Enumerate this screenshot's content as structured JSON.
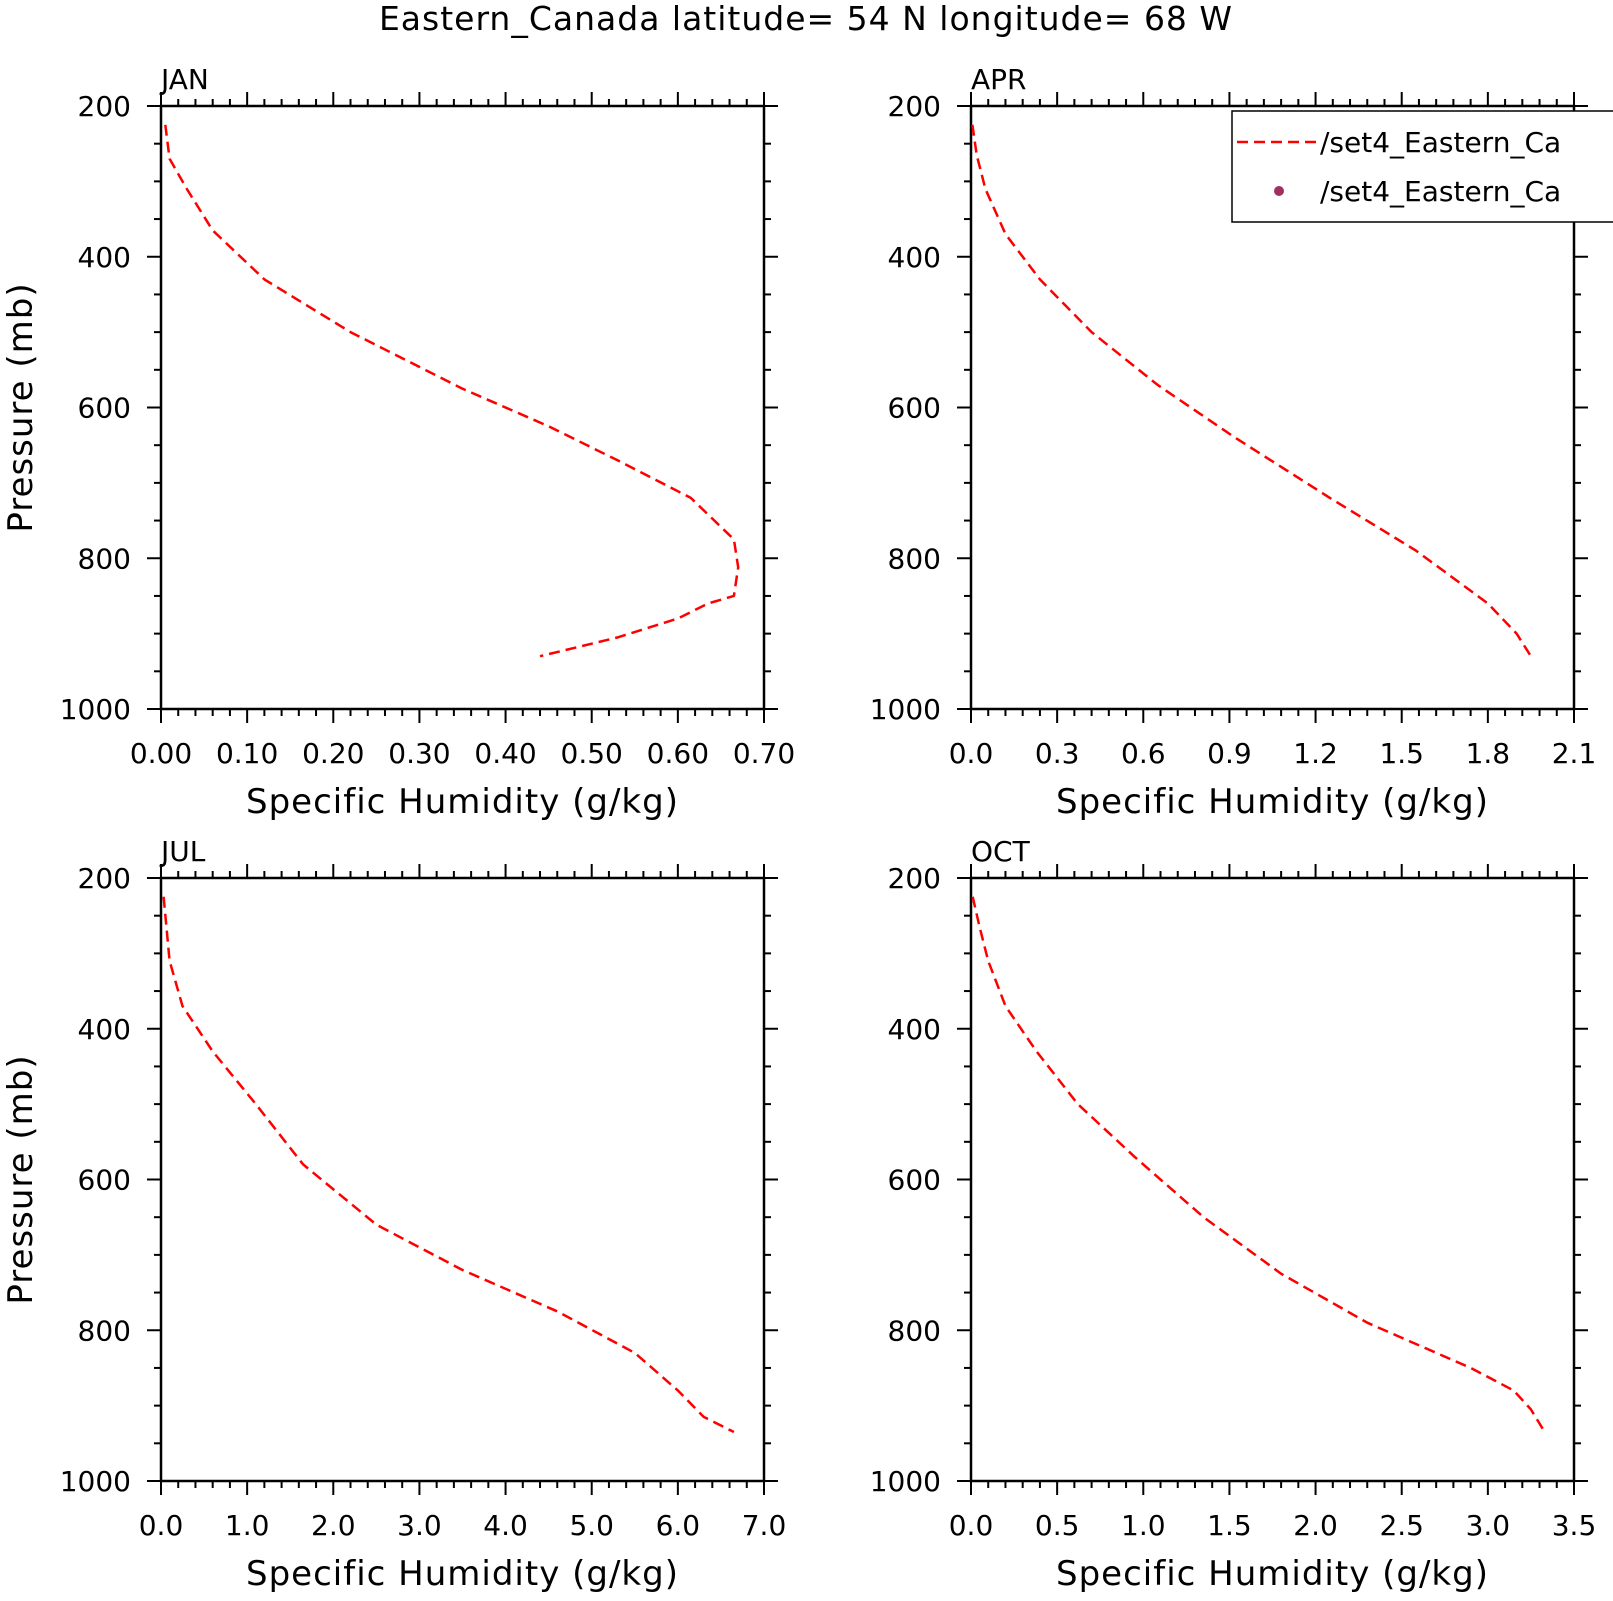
{
  "figure": {
    "title": "Eastern_Canada  latitude= 54 N longitude= 68 W"
  },
  "legend": {
    "entries": [
      {
        "label": "/set4_Eastern_Ca",
        "style": "dashed-line",
        "color": "#ff0000"
      },
      {
        "label": "/set4_Eastern_Ca",
        "style": "marker",
        "color": "#a03060"
      }
    ]
  },
  "chart_data": [
    {
      "type": "line",
      "title": "JAN",
      "xlabel": "Specific Humidity (g/kg)",
      "ylabel": "Pressure (mb)",
      "xlim": [
        0,
        0.7
      ],
      "ylim": [
        200,
        1000
      ],
      "y_inverted": true,
      "xticks": [
        "0.00",
        "0.10",
        "0.20",
        "0.30",
        "0.40",
        "0.50",
        "0.60",
        "0.70"
      ],
      "yticks": [
        "200",
        "400",
        "600",
        "800",
        "1000"
      ],
      "series": [
        {
          "color": "#ff0000",
          "dash": "dashed",
          "x": [
            0.005,
            0.01,
            0.03,
            0.06,
            0.12,
            0.22,
            0.35,
            0.45,
            0.53,
            0.615,
            0.665,
            0.67,
            0.665,
            0.635,
            0.6,
            0.53,
            0.44
          ],
          "y": [
            225,
            270,
            310,
            365,
            430,
            500,
            575,
            625,
            670,
            720,
            775,
            812,
            850,
            860,
            880,
            905,
            930
          ]
        }
      ]
    },
    {
      "type": "line",
      "title": "APR",
      "xlabel": "Specific Humidity (g/kg)",
      "ylabel": "Pressure (mb)",
      "xlim": [
        0,
        2.1
      ],
      "ylim": [
        200,
        1000
      ],
      "y_inverted": true,
      "xticks": [
        "0.0",
        "0.3",
        "0.6",
        "0.9",
        "1.2",
        "1.5",
        "1.8",
        "2.1"
      ],
      "yticks": [
        "200",
        "400",
        "600",
        "800",
        "1000"
      ],
      "series": [
        {
          "color": "#ff0000",
          "dash": "dashed",
          "x": [
            0.005,
            0.02,
            0.05,
            0.12,
            0.24,
            0.42,
            0.65,
            0.92,
            1.25,
            1.55,
            1.8,
            1.9,
            1.95
          ],
          "y": [
            225,
            265,
            310,
            370,
            430,
            500,
            570,
            640,
            720,
            790,
            860,
            900,
            930
          ]
        }
      ]
    },
    {
      "type": "line",
      "title": "JUL",
      "xlabel": "Specific Humidity (g/kg)",
      "ylabel": "Pressure (mb)",
      "xlim": [
        0,
        7.0
      ],
      "ylim": [
        200,
        1000
      ],
      "y_inverted": true,
      "xticks": [
        "0.0",
        "1.0",
        "2.0",
        "3.0",
        "4.0",
        "5.0",
        "6.0",
        "7.0"
      ],
      "yticks": [
        "200",
        "400",
        "600",
        "800",
        "1000"
      ],
      "series": [
        {
          "color": "#ff0000",
          "dash": "dashed",
          "x": [
            0.03,
            0.1,
            0.25,
            0.6,
            1.1,
            1.65,
            2.5,
            3.5,
            4.6,
            5.5,
            6.0,
            6.3,
            6.65
          ],
          "y": [
            225,
            310,
            370,
            430,
            500,
            580,
            660,
            720,
            775,
            830,
            880,
            915,
            935
          ]
        }
      ]
    },
    {
      "type": "line",
      "title": "OCT",
      "xlabel": "Specific Humidity (g/kg)",
      "ylabel": "Pressure (mb)",
      "xlim": [
        0,
        3.5
      ],
      "ylim": [
        200,
        1000
      ],
      "y_inverted": true,
      "xticks": [
        "0.0",
        "0.5",
        "1.0",
        "1.5",
        "2.0",
        "2.5",
        "3.0",
        "3.5"
      ],
      "yticks": [
        "200",
        "400",
        "600",
        "800",
        "1000"
      ],
      "series": [
        {
          "color": "#ff0000",
          "dash": "dashed",
          "x": [
            0.01,
            0.05,
            0.1,
            0.2,
            0.38,
            0.62,
            0.95,
            1.35,
            1.8,
            2.3,
            2.9,
            3.15,
            3.25,
            3.33
          ],
          "y": [
            225,
            265,
            310,
            370,
            430,
            500,
            570,
            650,
            725,
            790,
            850,
            880,
            905,
            935
          ]
        }
      ]
    }
  ]
}
